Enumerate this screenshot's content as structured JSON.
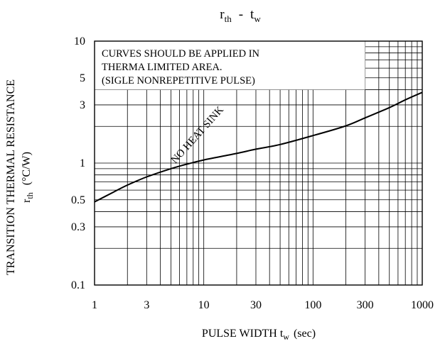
{
  "chart_data": {
    "type": "line",
    "title": {
      "main": "r",
      "main_sub": "th",
      "sep": "-",
      "second": "t",
      "second_sub": "w"
    },
    "xlabel": {
      "main": "PULSE WIDTH t",
      "sub": "w",
      "unit": "(sec)"
    },
    "ylabel": {
      "main": "TRANSITION THERMAL RESISTANCE",
      "sym": "r",
      "sym_sub": "th",
      "unit": "(°C/W)"
    },
    "x_scale": "log",
    "y_scale": "log",
    "xlim": [
      1,
      1000
    ],
    "ylim": [
      0.1,
      10
    ],
    "x_ticks": [
      {
        "value": 1,
        "label": "1"
      },
      {
        "value": 3,
        "label": "3"
      },
      {
        "value": 10,
        "label": "10"
      },
      {
        "value": 30,
        "label": "30"
      },
      {
        "value": 100,
        "label": "100"
      },
      {
        "value": 300,
        "label": "300"
      },
      {
        "value": 1000,
        "label": "1000"
      }
    ],
    "y_ticks": [
      {
        "value": 0.1,
        "label": "0.1"
      },
      {
        "value": 0.3,
        "label": "0.3"
      },
      {
        "value": 0.5,
        "label": "0.5"
      },
      {
        "value": 1,
        "label": "1"
      },
      {
        "value": 3,
        "label": "3"
      },
      {
        "value": 5,
        "label": "5"
      },
      {
        "value": 10,
        "label": "10"
      }
    ],
    "grid": true,
    "annotation_lines": [
      "CURVES SHOULD BE APPLIED IN",
      "THERMA LIMITED AREA.",
      "(SIGLE NONREPETITIVE PULSE)"
    ],
    "series": [
      {
        "name": "NO HEAT SINK",
        "x": [
          1,
          1.5,
          2,
          3,
          5,
          7,
          10,
          20,
          30,
          50,
          100,
          200,
          300,
          500,
          700,
          1000
        ],
        "y": [
          0.48,
          0.58,
          0.66,
          0.77,
          0.9,
          0.98,
          1.06,
          1.2,
          1.3,
          1.42,
          1.68,
          2.02,
          2.35,
          2.85,
          3.3,
          3.8
        ]
      }
    ]
  }
}
